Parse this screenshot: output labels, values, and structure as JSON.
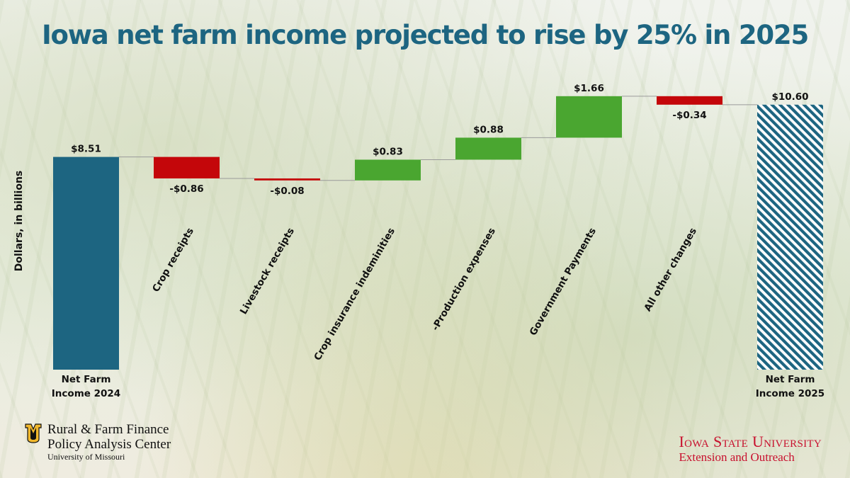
{
  "title": "Iowa net farm income projected to rise by 25% in 2025",
  "chart_data": {
    "type": "waterfall",
    "ylabel": "Dollars, in billions",
    "steps": [
      {
        "label": "Net Farm Income 2024",
        "label_lines": [
          "Net Farm",
          "Income 2024"
        ],
        "value": 8.51,
        "display": "$8.51",
        "kind": "total"
      },
      {
        "label": "Crop receipts",
        "value": -0.86,
        "display": "-$0.86",
        "kind": "delta"
      },
      {
        "label": "Livestock receipts",
        "value": -0.08,
        "display": "-$0.08",
        "kind": "delta"
      },
      {
        "label": "Crop insurance indeminities",
        "value": 0.83,
        "display": "$0.83",
        "kind": "delta"
      },
      {
        "label": "-Production expenses",
        "value": 0.88,
        "display": "$0.88",
        "kind": "delta"
      },
      {
        "label": "Government Payments",
        "value": 1.66,
        "display": "$1.66",
        "kind": "delta"
      },
      {
        "label": "All other changes",
        "value": -0.34,
        "display": "-$0.34",
        "kind": "delta"
      },
      {
        "label": "Net Farm Income 2025",
        "label_lines": [
          "Net Farm",
          "Income 2025"
        ],
        "value": 10.6,
        "display": "$10.60",
        "kind": "total_hatched"
      }
    ],
    "colors": {
      "total": "#1d6581",
      "increase": "#4aa630",
      "decrease": "#c4060a",
      "hatch": "#1d6581",
      "connector": "#9a9a9a"
    },
    "grid": false,
    "legend": "none"
  },
  "logos": {
    "left": {
      "line1": "Rural & Farm Finance",
      "line2": "Policy Analysis Center",
      "line3": "University of Missouri",
      "mark_icon": "mizzou-tiger-mark",
      "mark_color": "#f1b82d"
    },
    "right": {
      "name": "Iowa State University",
      "sub": "Extension and Outreach",
      "color": "#c8102e"
    }
  }
}
